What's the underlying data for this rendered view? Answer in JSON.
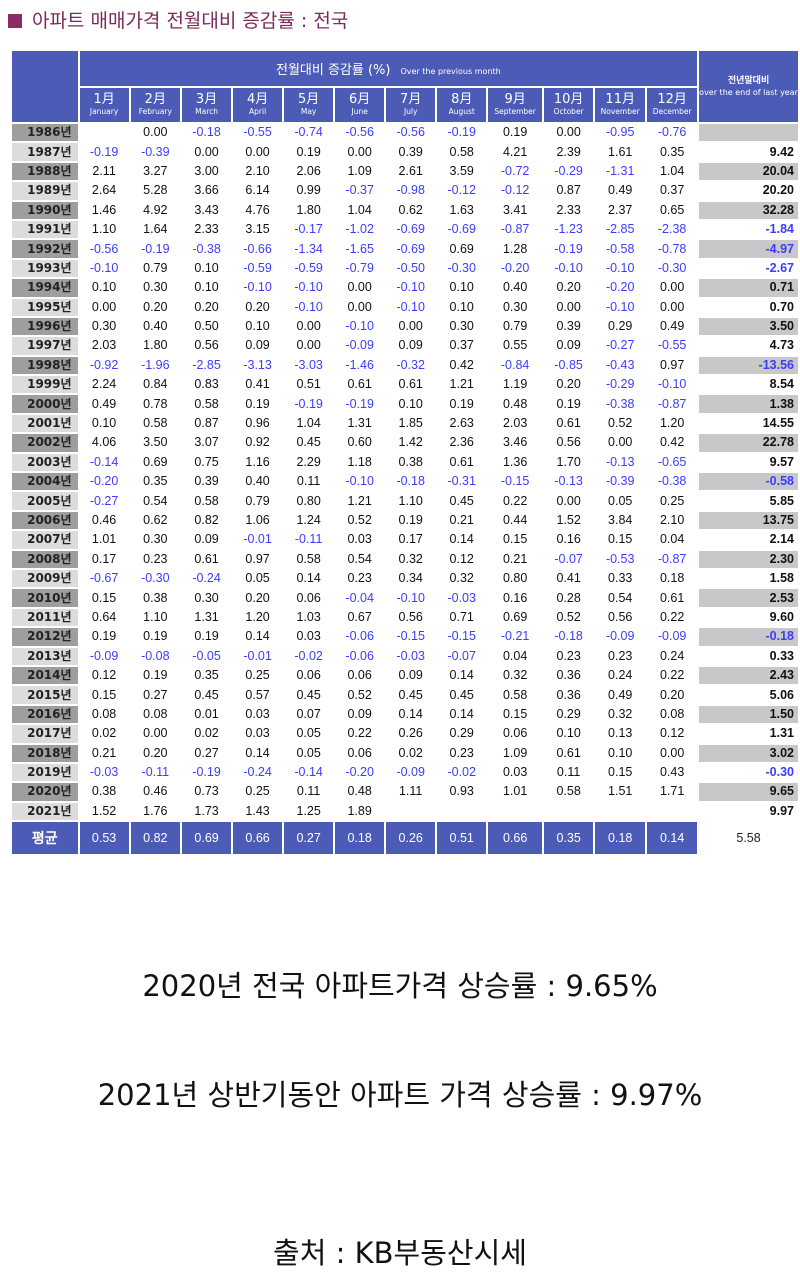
{
  "title": "아파트 매매가격 전월대비 증감률 : 전국",
  "header": {
    "main_ko": "전월대비 증감률 (%)",
    "main_en": "Over the previous month",
    "last_ko": "전년말대비",
    "last_en": "over the end of last year",
    "months": [
      {
        "ko": "1月",
        "en": "January"
      },
      {
        "ko": "2月",
        "en": "February"
      },
      {
        "ko": "3月",
        "en": "March"
      },
      {
        "ko": "4月",
        "en": "April"
      },
      {
        "ko": "5月",
        "en": "May"
      },
      {
        "ko": "6月",
        "en": "June"
      },
      {
        "ko": "7月",
        "en": "July"
      },
      {
        "ko": "8月",
        "en": "August"
      },
      {
        "ko": "9月",
        "en": "September"
      },
      {
        "ko": "10月",
        "en": "October"
      },
      {
        "ko": "11月",
        "en": "November"
      },
      {
        "ko": "12月",
        "en": "December"
      }
    ]
  },
  "rows": [
    {
      "year": "1986년",
      "values": [
        "",
        "0.00",
        "-0.18",
        "-0.55",
        "-0.74",
        "-0.56",
        "-0.56",
        "-0.19",
        "0.19",
        "0.00",
        "-0.95",
        "-0.76"
      ],
      "total": ""
    },
    {
      "year": "1987년",
      "values": [
        "-0.19",
        "-0.39",
        "0.00",
        "0.00",
        "0.19",
        "0.00",
        "0.39",
        "0.58",
        "4.21",
        "2.39",
        "1.61",
        "0.35"
      ],
      "total": "9.42"
    },
    {
      "year": "1988년",
      "values": [
        "2.11",
        "3.27",
        "3.00",
        "2.10",
        "2.06",
        "1.09",
        "2.61",
        "3.59",
        "-0.72",
        "-0.29",
        "-1.31",
        "1.04"
      ],
      "total": "20.04"
    },
    {
      "year": "1989년",
      "values": [
        "2.64",
        "5.28",
        "3.66",
        "6.14",
        "0.99",
        "-0.37",
        "-0.98",
        "-0.12",
        "-0.12",
        "0.87",
        "0.49",
        "0.37"
      ],
      "total": "20.20"
    },
    {
      "year": "1990년",
      "values": [
        "1.46",
        "4.92",
        "3.43",
        "4.76",
        "1.80",
        "1.04",
        "0.62",
        "1.63",
        "3.41",
        "2.33",
        "2.37",
        "0.65"
      ],
      "total": "32.28"
    },
    {
      "year": "1991년",
      "values": [
        "1.10",
        "1.64",
        "2.33",
        "3.15",
        "-0.17",
        "-1.02",
        "-0.69",
        "-0.69",
        "-0.87",
        "-1.23",
        "-2.85",
        "-2.38"
      ],
      "total": "-1.84"
    },
    {
      "year": "1992년",
      "values": [
        "-0.56",
        "-0.19",
        "-0.38",
        "-0.66",
        "-1.34",
        "-1.65",
        "-0.69",
        "0.69",
        "1.28",
        "-0.19",
        "-0.58",
        "-0.78"
      ],
      "total": "-4.97"
    },
    {
      "year": "1993년",
      "values": [
        "-0.10",
        "0.79",
        "0.10",
        "-0.59",
        "-0.59",
        "-0.79",
        "-0.50",
        "-0.30",
        "-0.20",
        "-0.10",
        "-0.10",
        "-0.30"
      ],
      "total": "-2.67"
    },
    {
      "year": "1994년",
      "values": [
        "0.10",
        "0.30",
        "0.10",
        "-0.10",
        "-0.10",
        "0.00",
        "-0.10",
        "0.10",
        "0.40",
        "0.20",
        "-0.20",
        "0.00"
      ],
      "total": "0.71"
    },
    {
      "year": "1995년",
      "values": [
        "0.00",
        "0.20",
        "0.20",
        "0.20",
        "-0.10",
        "0.00",
        "-0.10",
        "0.10",
        "0.30",
        "0.00",
        "-0.10",
        "0.00"
      ],
      "total": "0.70"
    },
    {
      "year": "1996년",
      "values": [
        "0.30",
        "0.40",
        "0.50",
        "0.10",
        "0.00",
        "-0.10",
        "0.00",
        "0.30",
        "0.79",
        "0.39",
        "0.29",
        "0.49"
      ],
      "total": "3.50"
    },
    {
      "year": "1997년",
      "values": [
        "2.03",
        "1.80",
        "0.56",
        "0.09",
        "0.00",
        "-0.09",
        "0.09",
        "0.37",
        "0.55",
        "0.09",
        "-0.27",
        "-0.55"
      ],
      "total": "4.73"
    },
    {
      "year": "1998년",
      "values": [
        "-0.92",
        "-1.96",
        "-2.85",
        "-3.13",
        "-3.03",
        "-1.46",
        "-0.32",
        "0.42",
        "-0.84",
        "-0.85",
        "-0.43",
        "0.97"
      ],
      "total": "-13.56"
    },
    {
      "year": "1999년",
      "values": [
        "2.24",
        "0.84",
        "0.83",
        "0.41",
        "0.51",
        "0.61",
        "0.61",
        "1.21",
        "1.19",
        "0.20",
        "-0.29",
        "-0.10"
      ],
      "total": "8.54"
    },
    {
      "year": "2000년",
      "values": [
        "0.49",
        "0.78",
        "0.58",
        "0.19",
        "-0.19",
        "-0.19",
        "0.10",
        "0.19",
        "0.48",
        "0.19",
        "-0.38",
        "-0.87"
      ],
      "total": "1.38"
    },
    {
      "year": "2001년",
      "values": [
        "0.10",
        "0.58",
        "0.87",
        "0.96",
        "1.04",
        "1.31",
        "1.85",
        "2.63",
        "2.03",
        "0.61",
        "0.52",
        "1.20"
      ],
      "total": "14.55"
    },
    {
      "year": "2002년",
      "values": [
        "4.06",
        "3.50",
        "3.07",
        "0.92",
        "0.45",
        "0.60",
        "1.42",
        "2.36",
        "3.46",
        "0.56",
        "0.00",
        "0.42"
      ],
      "total": "22.78"
    },
    {
      "year": "2003년",
      "values": [
        "-0.14",
        "0.69",
        "0.75",
        "1.16",
        "2.29",
        "1.18",
        "0.38",
        "0.61",
        "1.36",
        "1.70",
        "-0.13",
        "-0.65"
      ],
      "total": "9.57"
    },
    {
      "year": "2004년",
      "values": [
        "-0.20",
        "0.35",
        "0.39",
        "0.40",
        "0.11",
        "-0.10",
        "-0.18",
        "-0.31",
        "-0.15",
        "-0.13",
        "-0.39",
        "-0.38"
      ],
      "total": "-0.58"
    },
    {
      "year": "2005년",
      "values": [
        "-0.27",
        "0.54",
        "0.58",
        "0.79",
        "0.80",
        "1.21",
        "1.10",
        "0.45",
        "0.22",
        "0.00",
        "0.05",
        "0.25"
      ],
      "total": "5.85"
    },
    {
      "year": "2006년",
      "values": [
        "0.46",
        "0.62",
        "0.82",
        "1.06",
        "1.24",
        "0.52",
        "0.19",
        "0.21",
        "0.44",
        "1.52",
        "3.84",
        "2.10"
      ],
      "total": "13.75"
    },
    {
      "year": "2007년",
      "values": [
        "1.01",
        "0.30",
        "0.09",
        "-0.01",
        "-0.11",
        "0.03",
        "0.17",
        "0.14",
        "0.15",
        "0.16",
        "0.15",
        "0.04"
      ],
      "total": "2.14"
    },
    {
      "year": "2008년",
      "values": [
        "0.17",
        "0.23",
        "0.61",
        "0.97",
        "0.58",
        "0.54",
        "0.32",
        "0.12",
        "0.21",
        "-0.07",
        "-0.53",
        "-0.87"
      ],
      "total": "2.30"
    },
    {
      "year": "2009년",
      "values": [
        "-0.67",
        "-0.30",
        "-0.24",
        "0.05",
        "0.14",
        "0.23",
        "0.34",
        "0.32",
        "0.80",
        "0.41",
        "0.33",
        "0.18"
      ],
      "total": "1.58"
    },
    {
      "year": "2010년",
      "values": [
        "0.15",
        "0.38",
        "0.30",
        "0.20",
        "0.06",
        "-0.04",
        "-0.10",
        "-0.03",
        "0.16",
        "0.28",
        "0.54",
        "0.61"
      ],
      "total": "2.53"
    },
    {
      "year": "2011년",
      "values": [
        "0.64",
        "1.10",
        "1.31",
        "1.20",
        "1.03",
        "0.67",
        "0.56",
        "0.71",
        "0.69",
        "0.52",
        "0.56",
        "0.22"
      ],
      "total": "9.60"
    },
    {
      "year": "2012년",
      "values": [
        "0.19",
        "0.19",
        "0.19",
        "0.14",
        "0.03",
        "-0.06",
        "-0.15",
        "-0.15",
        "-0.21",
        "-0.18",
        "-0.09",
        "-0.09"
      ],
      "total": "-0.18"
    },
    {
      "year": "2013년",
      "values": [
        "-0.09",
        "-0.08",
        "-0.05",
        "-0.01",
        "-0.02",
        "-0.06",
        "-0.03",
        "-0.07",
        "0.04",
        "0.23",
        "0.23",
        "0.24"
      ],
      "total": "0.33"
    },
    {
      "year": "2014년",
      "values": [
        "0.12",
        "0.19",
        "0.35",
        "0.25",
        "0.06",
        "0.06",
        "0.09",
        "0.14",
        "0.32",
        "0.36",
        "0.24",
        "0.22"
      ],
      "total": "2.43"
    },
    {
      "year": "2015년",
      "values": [
        "0.15",
        "0.27",
        "0.45",
        "0.57",
        "0.45",
        "0.52",
        "0.45",
        "0.45",
        "0.58",
        "0.36",
        "0.49",
        "0.20"
      ],
      "total": "5.06"
    },
    {
      "year": "2016년",
      "values": [
        "0.08",
        "0.08",
        "0.01",
        "0.03",
        "0.07",
        "0.09",
        "0.14",
        "0.14",
        "0.15",
        "0.29",
        "0.32",
        "0.08"
      ],
      "total": "1.50"
    },
    {
      "year": "2017년",
      "values": [
        "0.02",
        "0.00",
        "0.02",
        "0.03",
        "0.05",
        "0.22",
        "0.26",
        "0.29",
        "0.06",
        "0.10",
        "0.13",
        "0.12"
      ],
      "total": "1.31"
    },
    {
      "year": "2018년",
      "values": [
        "0.21",
        "0.20",
        "0.27",
        "0.14",
        "0.05",
        "0.06",
        "0.02",
        "0.23",
        "1.09",
        "0.61",
        "0.10",
        "0.00"
      ],
      "total": "3.02"
    },
    {
      "year": "2019년",
      "values": [
        "-0.03",
        "-0.11",
        "-0.19",
        "-0.24",
        "-0.14",
        "-0.20",
        "-0.09",
        "-0.02",
        "0.03",
        "0.11",
        "0.15",
        "0.43"
      ],
      "total": "-0.30"
    },
    {
      "year": "2020년",
      "values": [
        "0.38",
        "0.46",
        "0.73",
        "0.25",
        "0.11",
        "0.48",
        "1.11",
        "0.93",
        "1.01",
        "0.58",
        "1.51",
        "1.71"
      ],
      "total": "9.65"
    },
    {
      "year": "2021년",
      "values": [
        "1.52",
        "1.76",
        "1.73",
        "1.43",
        "1.25",
        "1.89",
        "",
        "",
        "",
        "",
        "",
        ""
      ],
      "total": "9.97"
    }
  ],
  "average": {
    "label": "평균",
    "values": [
      "0.53",
      "0.82",
      "0.69",
      "0.66",
      "0.27",
      "0.18",
      "0.26",
      "0.51",
      "0.66",
      "0.35",
      "0.18",
      "0.14"
    ],
    "total": "5.58"
  },
  "notes": [
    "2020년 전국 아파트가격 상승률 : 9.65%",
    "2021년 상반기동안 아파트 가격 상승률 : 9.97%",
    "출처 : KB부동산시세"
  ],
  "colors": {
    "header_bg": "#4c5cb6",
    "negative_text": "#3c3cff",
    "title_color": "#7a2a5c"
  }
}
